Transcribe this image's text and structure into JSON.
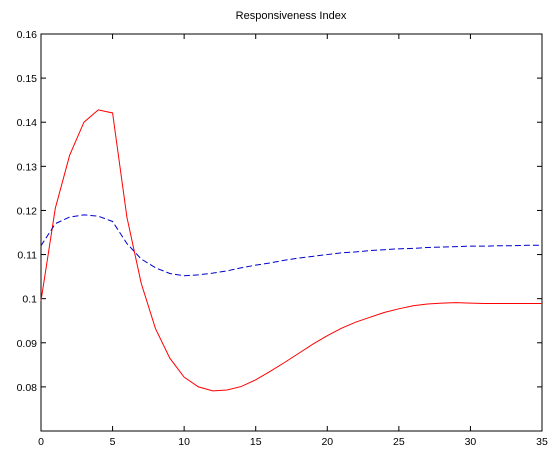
{
  "chart_data": {
    "type": "line",
    "title": "Responsiveness Index",
    "xlabel": "",
    "ylabel": "",
    "xlim": [
      0,
      35
    ],
    "ylim": [
      0.07,
      0.16
    ],
    "grid": false,
    "x_ticks": [
      "0",
      "5",
      "10",
      "15",
      "20",
      "25",
      "30",
      "35"
    ],
    "y_ticks": [
      "0.08",
      "0.09",
      "0.1",
      "0.11",
      "0.12",
      "0.13",
      "0.14",
      "0.15",
      "0.16"
    ],
    "series": [
      {
        "color": "#ff0000",
        "style": "solid",
        "x": [
          0,
          1,
          2,
          3,
          4,
          5,
          6,
          7,
          8,
          9,
          10,
          11,
          12,
          13,
          14,
          15,
          16,
          17,
          18,
          19,
          20,
          21,
          22,
          23,
          24,
          25,
          26,
          27,
          28,
          29,
          30,
          31,
          32,
          33,
          34,
          35
        ],
        "y": [
          0.0995,
          0.1205,
          0.1325,
          0.14,
          0.1428,
          0.1421,
          0.1185,
          0.1035,
          0.0932,
          0.0865,
          0.0822,
          0.08,
          0.0791,
          0.0793,
          0.0801,
          0.0816,
          0.0835,
          0.0855,
          0.0876,
          0.0897,
          0.0916,
          0.0933,
          0.0947,
          0.0958,
          0.0969,
          0.0977,
          0.0984,
          0.0988,
          0.099,
          0.0991,
          0.099,
          0.0989,
          0.0989,
          0.0989,
          0.0989,
          0.0989
        ]
      },
      {
        "color": "#0000cc",
        "style": "dashed",
        "x": [
          0,
          1,
          2,
          3,
          4,
          5,
          6,
          7,
          8,
          9,
          10,
          11,
          12,
          13,
          14,
          15,
          16,
          17,
          18,
          19,
          20,
          21,
          22,
          23,
          24,
          25,
          26,
          27,
          28,
          29,
          30,
          31,
          32,
          33,
          34,
          35
        ],
        "y": [
          0.112,
          0.117,
          0.1185,
          0.119,
          0.1187,
          0.1175,
          0.1125,
          0.109,
          0.107,
          0.1057,
          0.1052,
          0.1054,
          0.1058,
          0.1063,
          0.107,
          0.1076,
          0.1081,
          0.1087,
          0.1092,
          0.1096,
          0.11,
          0.1104,
          0.1106,
          0.1109,
          0.1111,
          0.1113,
          0.1114,
          0.1116,
          0.1117,
          0.1118,
          0.1119,
          0.1119,
          0.112,
          0.112,
          0.1121,
          0.1121
        ]
      }
    ]
  }
}
